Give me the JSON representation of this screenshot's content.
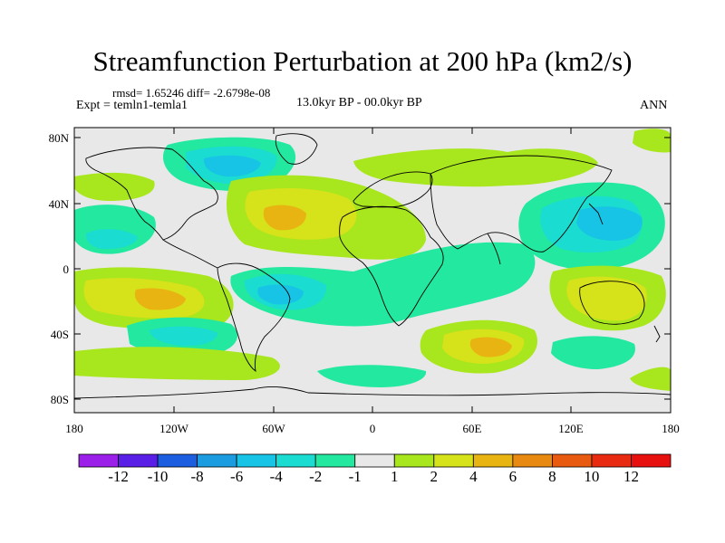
{
  "header": {
    "title": "Streamfunction Perturbation at 200 hPa (km2/s)",
    "stats": "rmsd= 1.65246 diff= -2.6798e-08",
    "experiment": "Expt = temln1-temla1",
    "period": "13.0kyr BP - 00.0kyr BP",
    "season": "ANN"
  },
  "axes": {
    "lat_labels": [
      "80N",
      "40N",
      "0",
      "40S",
      "80S"
    ],
    "lon_labels": [
      "180",
      "120W",
      "60W",
      "0",
      "60E",
      "120E",
      "180"
    ]
  },
  "colorbar": {
    "labels": [
      "-12",
      "-10",
      "-8",
      "-6",
      "-4",
      "-2",
      "-1",
      "1",
      "2",
      "4",
      "6",
      "8",
      "10",
      "12"
    ],
    "colors": [
      "#9b1fe8",
      "#5a1fe6",
      "#1b5fe0",
      "#1b9ce0",
      "#17c4e6",
      "#1bdcd0",
      "#22e8a0",
      "#e8e8e8",
      "#a8e61e",
      "#d6e21a",
      "#e8b412",
      "#e88a12",
      "#e85a10",
      "#e82a10",
      "#e80f0f"
    ]
  },
  "field_colors": {
    "neutral": "#e8e8e8",
    "pos1": "#a8e61e",
    "pos2": "#d6e21a",
    "pos3": "#e8b412",
    "pos4": "#e88a12",
    "neg1": "#22e8a0",
    "neg2": "#1bdcd0",
    "neg3": "#17c4e6",
    "neg4": "#1b9ce0"
  }
}
